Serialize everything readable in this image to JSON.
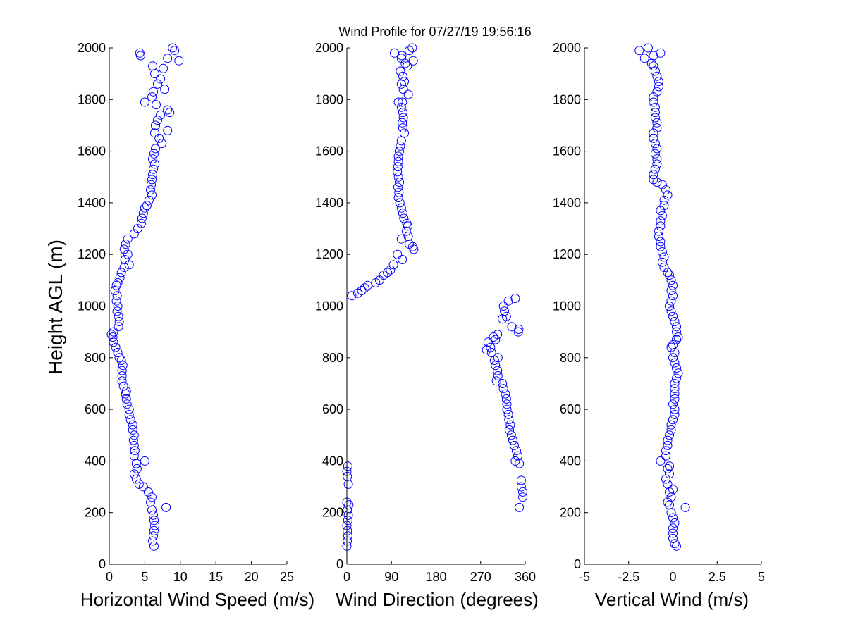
{
  "title": "Wind Profile for  07/27/19 19:56:16",
  "ylabel": "Height AGL (m)",
  "marker_color": "#0000ff",
  "chart_data": [
    {
      "type": "scatter",
      "xlabel": "Horizontal Wind Speed (m/s)",
      "ylabel": "Height AGL (m)",
      "xlim": [
        0,
        25
      ],
      "ylim": [
        0,
        2000
      ],
      "xticks": [
        "0",
        "5",
        "10",
        "15",
        "20",
        "25"
      ],
      "xtick_values": [
        0,
        5,
        10,
        15,
        20,
        25
      ],
      "yticks": [
        "0",
        "200",
        "400",
        "600",
        "800",
        "1000",
        "1200",
        "1400",
        "1600",
        "1800",
        "2000"
      ],
      "ytick_values": [
        0,
        200,
        400,
        600,
        800,
        1000,
        1200,
        1400,
        1600,
        1800,
        2000
      ],
      "grid": false,
      "marker": "open-circle",
      "points": [
        [
          6.3,
          70
        ],
        [
          6.1,
          90
        ],
        [
          6.2,
          110
        ],
        [
          6.3,
          130
        ],
        [
          6.4,
          150
        ],
        [
          6.3,
          170
        ],
        [
          6.2,
          190
        ],
        [
          6.0,
          210
        ],
        [
          8.0,
          220
        ],
        [
          5.8,
          240
        ],
        [
          6.0,
          260
        ],
        [
          5.5,
          280
        ],
        [
          4.8,
          300
        ],
        [
          4.2,
          310
        ],
        [
          3.8,
          330
        ],
        [
          3.5,
          350
        ],
        [
          3.9,
          370
        ],
        [
          3.8,
          390
        ],
        [
          5.0,
          400
        ],
        [
          3.5,
          420
        ],
        [
          3.6,
          440
        ],
        [
          3.5,
          460
        ],
        [
          3.4,
          480
        ],
        [
          3.5,
          500
        ],
        [
          3.3,
          520
        ],
        [
          3.3,
          540
        ],
        [
          3.0,
          560
        ],
        [
          2.8,
          580
        ],
        [
          2.8,
          600
        ],
        [
          2.5,
          620
        ],
        [
          2.4,
          640
        ],
        [
          2.3,
          660
        ],
        [
          2.4,
          670
        ],
        [
          2.0,
          690
        ],
        [
          1.8,
          710
        ],
        [
          1.8,
          730
        ],
        [
          1.8,
          750
        ],
        [
          1.9,
          770
        ],
        [
          1.7,
          790
        ],
        [
          1.4,
          800
        ],
        [
          1.2,
          820
        ],
        [
          0.9,
          840
        ],
        [
          0.6,
          860
        ],
        [
          0.5,
          880
        ],
        [
          0.3,
          890
        ],
        [
          0.6,
          900
        ],
        [
          1.3,
          920
        ],
        [
          1.4,
          940
        ],
        [
          1.3,
          960
        ],
        [
          1.1,
          980
        ],
        [
          1.2,
          1000
        ],
        [
          1.0,
          1020
        ],
        [
          1.1,
          1040
        ],
        [
          0.8,
          1060
        ],
        [
          1.0,
          1080
        ],
        [
          1.2,
          1090
        ],
        [
          1.5,
          1110
        ],
        [
          1.7,
          1130
        ],
        [
          2.1,
          1150
        ],
        [
          2.8,
          1160
        ],
        [
          2.2,
          1180
        ],
        [
          2.6,
          1200
        ],
        [
          2.1,
          1220
        ],
        [
          2.3,
          1240
        ],
        [
          2.6,
          1260
        ],
        [
          3.5,
          1280
        ],
        [
          4.0,
          1300
        ],
        [
          4.5,
          1320
        ],
        [
          4.6,
          1340
        ],
        [
          4.8,
          1360
        ],
        [
          5.0,
          1380
        ],
        [
          5.3,
          1390
        ],
        [
          5.6,
          1410
        ],
        [
          6.0,
          1430
        ],
        [
          5.8,
          1450
        ],
        [
          5.9,
          1470
        ],
        [
          6.0,
          1490
        ],
        [
          6.1,
          1510
        ],
        [
          6.2,
          1530
        ],
        [
          6.4,
          1550
        ],
        [
          6.1,
          1570
        ],
        [
          6.3,
          1590
        ],
        [
          6.5,
          1610
        ],
        [
          7.4,
          1630
        ],
        [
          7.0,
          1650
        ],
        [
          6.4,
          1670
        ],
        [
          8.2,
          1680
        ],
        [
          6.5,
          1700
        ],
        [
          6.8,
          1720
        ],
        [
          7.2,
          1740
        ],
        [
          8.5,
          1750
        ],
        [
          8.2,
          1760
        ],
        [
          6.6,
          1780
        ],
        [
          5.0,
          1790
        ],
        [
          6.0,
          1810
        ],
        [
          6.2,
          1830
        ],
        [
          7.8,
          1840
        ],
        [
          6.8,
          1860
        ],
        [
          7.2,
          1880
        ],
        [
          6.4,
          1900
        ],
        [
          7.6,
          1920
        ],
        [
          6.1,
          1930
        ],
        [
          9.8,
          1950
        ],
        [
          8.2,
          1960
        ],
        [
          4.4,
          1970
        ],
        [
          4.3,
          1980
        ],
        [
          9.2,
          1990
        ],
        [
          8.9,
          2000
        ]
      ]
    },
    {
      "type": "scatter",
      "xlabel": "Wind Direction (degrees)",
      "ylabel": "",
      "xlim": [
        0,
        360
      ],
      "ylim": [
        0,
        2000
      ],
      "xticks": [
        "0",
        "90",
        "180",
        "270",
        "360"
      ],
      "xtick_values": [
        0,
        90,
        180,
        270,
        360
      ],
      "yticks": [
        "0",
        "200",
        "400",
        "600",
        "800",
        "1000",
        "1200",
        "1400",
        "1600",
        "1800",
        "2000"
      ],
      "ytick_values": [
        0,
        200,
        400,
        600,
        800,
        1000,
        1200,
        1400,
        1600,
        1800,
        2000
      ],
      "grid": false,
      "marker": "open-circle",
      "points": [
        [
          0,
          70
        ],
        [
          1,
          90
        ],
        [
          2,
          110
        ],
        [
          1,
          130
        ],
        [
          0,
          150
        ],
        [
          2,
          170
        ],
        [
          3,
          190
        ],
        [
          1,
          210
        ],
        [
          4,
          230
        ],
        [
          0,
          240
        ],
        [
          348,
          220
        ],
        [
          355,
          260
        ],
        [
          355,
          280
        ],
        [
          352,
          300
        ],
        [
          3,
          310
        ],
        [
          352,
          325
        ],
        [
          1,
          340
        ],
        [
          0,
          360
        ],
        [
          2,
          380
        ],
        [
          348,
          390
        ],
        [
          340,
          400
        ],
        [
          345,
          420
        ],
        [
          342,
          440
        ],
        [
          338,
          460
        ],
        [
          335,
          480
        ],
        [
          332,
          500
        ],
        [
          328,
          520
        ],
        [
          330,
          540
        ],
        [
          327,
          560
        ],
        [
          326,
          580
        ],
        [
          323,
          600
        ],
        [
          323,
          620
        ],
        [
          322,
          640
        ],
        [
          320,
          660
        ],
        [
          316,
          680
        ],
        [
          314,
          700
        ],
        [
          302,
          710
        ],
        [
          305,
          730
        ],
        [
          304,
          750
        ],
        [
          300,
          770
        ],
        [
          298,
          790
        ],
        [
          305,
          800
        ],
        [
          292,
          820
        ],
        [
          282,
          830
        ],
        [
          290,
          840
        ],
        [
          285,
          860
        ],
        [
          300,
          870
        ],
        [
          296,
          880
        ],
        [
          304,
          890
        ],
        [
          346,
          900
        ],
        [
          347,
          910
        ],
        [
          333,
          920
        ],
        [
          314,
          950
        ],
        [
          322,
          960
        ],
        [
          318,
          980
        ],
        [
          316,
          1000
        ],
        [
          326,
          1020
        ],
        [
          340,
          1030
        ],
        [
          10,
          1040
        ],
        [
          22,
          1050
        ],
        [
          30,
          1060
        ],
        [
          36,
          1070
        ],
        [
          42,
          1080
        ],
        [
          58,
          1090
        ],
        [
          66,
          1100
        ],
        [
          74,
          1120
        ],
        [
          82,
          1130
        ],
        [
          88,
          1140
        ],
        [
          94,
          1160
        ],
        [
          112,
          1180
        ],
        [
          102,
          1200
        ],
        [
          135,
          1220
        ],
        [
          133,
          1230
        ],
        [
          126,
          1240
        ],
        [
          110,
          1260
        ],
        [
          124,
          1270
        ],
        [
          120,
          1290
        ],
        [
          123,
          1310
        ],
        [
          121,
          1320
        ],
        [
          115,
          1340
        ],
        [
          113,
          1360
        ],
        [
          110,
          1380
        ],
        [
          107,
          1400
        ],
        [
          104,
          1420
        ],
        [
          105,
          1440
        ],
        [
          103,
          1460
        ],
        [
          106,
          1480
        ],
        [
          104,
          1500
        ],
        [
          102,
          1520
        ],
        [
          103,
          1540
        ],
        [
          104,
          1560
        ],
        [
          104,
          1580
        ],
        [
          106,
          1600
        ],
        [
          108,
          1620
        ],
        [
          110,
          1640
        ],
        [
          116,
          1670
        ],
        [
          113,
          1690
        ],
        [
          112,
          1710
        ],
        [
          114,
          1730
        ],
        [
          113,
          1750
        ],
        [
          110,
          1770
        ],
        [
          112,
          1790
        ],
        [
          104,
          1790
        ],
        [
          124,
          1820
        ],
        [
          114,
          1840
        ],
        [
          110,
          1860
        ],
        [
          116,
          1870
        ],
        [
          113,
          1890
        ],
        [
          108,
          1910
        ],
        [
          122,
          1930
        ],
        [
          118,
          1940
        ],
        [
          134,
          1950
        ],
        [
          110,
          1960
        ],
        [
          111,
          1970
        ],
        [
          96,
          1980
        ],
        [
          132,
          2000
        ],
        [
          126,
          1990
        ]
      ]
    },
    {
      "type": "scatter",
      "xlabel": "Vertical Wind (m/s)",
      "ylabel": "",
      "xlim": [
        -5,
        5
      ],
      "ylim": [
        0,
        2000
      ],
      "xticks": [
        "-5",
        "-2.5",
        "0",
        "2.5",
        "5"
      ],
      "xtick_values": [
        -5,
        -2.5,
        0,
        2.5,
        5
      ],
      "yticks": [
        "0",
        "200",
        "400",
        "600",
        "800",
        "1000",
        "1200",
        "1400",
        "1600",
        "1800",
        "2000"
      ],
      "ytick_values": [
        0,
        200,
        400,
        600,
        800,
        1000,
        1200,
        1400,
        1600,
        1800,
        2000
      ],
      "grid": false,
      "marker": "open-circle",
      "points": [
        [
          0.2,
          70
        ],
        [
          0.1,
          80
        ],
        [
          0.0,
          100
        ],
        [
          0.0,
          120
        ],
        [
          0.0,
          140
        ],
        [
          0.1,
          160
        ],
        [
          0.0,
          180
        ],
        [
          -0.1,
          200
        ],
        [
          0.7,
          220
        ],
        [
          -0.2,
          230
        ],
        [
          -0.3,
          240
        ],
        [
          -0.1,
          260
        ],
        [
          -0.2,
          280
        ],
        [
          0.0,
          290
        ],
        [
          -0.3,
          310
        ],
        [
          -0.4,
          330
        ],
        [
          -0.2,
          350
        ],
        [
          -0.3,
          370
        ],
        [
          -0.2,
          380
        ],
        [
          -0.7,
          400
        ],
        [
          -0.4,
          420
        ],
        [
          -0.4,
          440
        ],
        [
          -0.3,
          460
        ],
        [
          -0.3,
          480
        ],
        [
          -0.2,
          500
        ],
        [
          -0.1,
          520
        ],
        [
          -0.1,
          540
        ],
        [
          0.0,
          560
        ],
        [
          0.1,
          580
        ],
        [
          0.1,
          600
        ],
        [
          0.0,
          620
        ],
        [
          0.1,
          640
        ],
        [
          0.1,
          660
        ],
        [
          0.1,
          680
        ],
        [
          0.1,
          700
        ],
        [
          0.2,
          720
        ],
        [
          0.3,
          740
        ],
        [
          0.2,
          760
        ],
        [
          0.1,
          780
        ],
        [
          0.0,
          800
        ],
        [
          0.1,
          820
        ],
        [
          -0.1,
          840
        ],
        [
          0.0,
          850
        ],
        [
          0.2,
          870
        ],
        [
          0.3,
          880
        ],
        [
          0.2,
          900
        ],
        [
          0.2,
          920
        ],
        [
          0.1,
          940
        ],
        [
          0.0,
          960
        ],
        [
          -0.1,
          980
        ],
        [
          -0.2,
          1000
        ],
        [
          -0.1,
          1020
        ],
        [
          0.0,
          1040
        ],
        [
          -0.1,
          1060
        ],
        [
          0.0,
          1080
        ],
        [
          -0.1,
          1100
        ],
        [
          -0.2,
          1120
        ],
        [
          -0.3,
          1130
        ],
        [
          -0.5,
          1150
        ],
        [
          -0.6,
          1170
        ],
        [
          -0.5,
          1190
        ],
        [
          -0.6,
          1210
        ],
        [
          -0.7,
          1230
        ],
        [
          -0.7,
          1250
        ],
        [
          -0.8,
          1270
        ],
        [
          -0.8,
          1290
        ],
        [
          -0.7,
          1310
        ],
        [
          -0.7,
          1330
        ],
        [
          -0.6,
          1350
        ],
        [
          -0.7,
          1370
        ],
        [
          -0.5,
          1390
        ],
        [
          -0.5,
          1410
        ],
        [
          -0.3,
          1430
        ],
        [
          -0.4,
          1450
        ],
        [
          -0.6,
          1470
        ],
        [
          -0.9,
          1480
        ],
        [
          -1.1,
          1490
        ],
        [
          -1.1,
          1510
        ],
        [
          -1.0,
          1530
        ],
        [
          -0.9,
          1550
        ],
        [
          -0.9,
          1570
        ],
        [
          -1.0,
          1590
        ],
        [
          -0.9,
          1610
        ],
        [
          -1.0,
          1630
        ],
        [
          -1.1,
          1650
        ],
        [
          -1.1,
          1670
        ],
        [
          -0.9,
          1690
        ],
        [
          -0.9,
          1710
        ],
        [
          -1.0,
          1730
        ],
        [
          -1.0,
          1750
        ],
        [
          -1.0,
          1770
        ],
        [
          -1.1,
          1790
        ],
        [
          -1.1,
          1810
        ],
        [
          -0.9,
          1830
        ],
        [
          -0.8,
          1850
        ],
        [
          -0.8,
          1870
        ],
        [
          -0.9,
          1890
        ],
        [
          -1.0,
          1910
        ],
        [
          -1.1,
          1930
        ],
        [
          -1.2,
          1940
        ],
        [
          -1.6,
          1960
        ],
        [
          -1.1,
          1970
        ],
        [
          -0.7,
          1980
        ],
        [
          -1.9,
          1990
        ],
        [
          -1.4,
          2000
        ]
      ]
    }
  ]
}
